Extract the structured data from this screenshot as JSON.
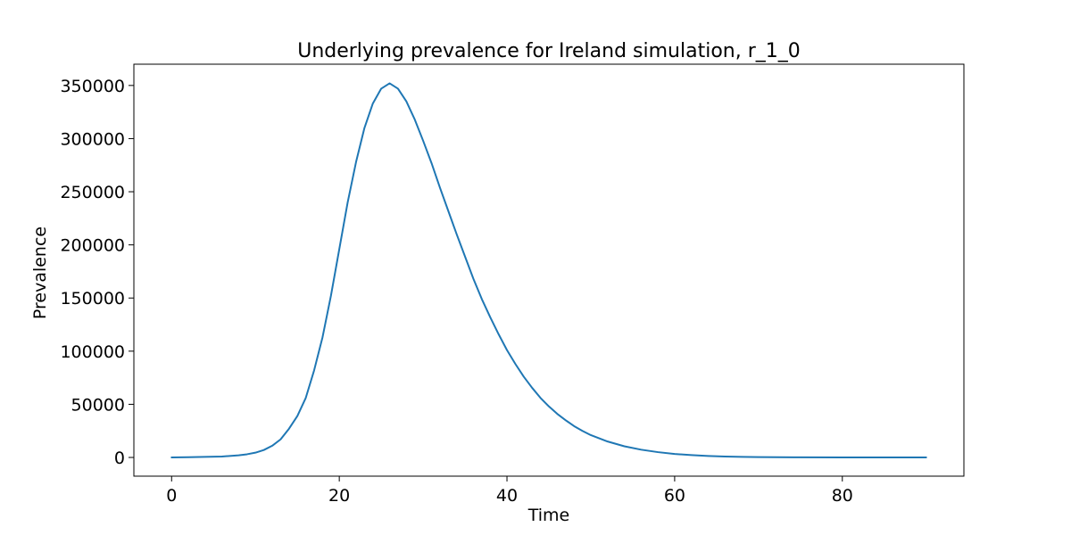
{
  "chart_data": {
    "type": "line",
    "title": "Underlying prevalence for Ireland simulation, r_1_0",
    "xlabel": "Time",
    "ylabel": "Prevalence",
    "xlim": [
      -4.5,
      94.5
    ],
    "ylim": [
      -17600,
      370000
    ],
    "xticks": [
      0,
      20,
      40,
      60,
      80
    ],
    "xtick_labels": [
      "0",
      "20",
      "40",
      "60",
      "80"
    ],
    "yticks": [
      0,
      50000,
      100000,
      150000,
      200000,
      250000,
      300000,
      350000
    ],
    "ytick_labels": [
      "0",
      "50000",
      "100000",
      "150000",
      "200000",
      "250000",
      "300000",
      "350000"
    ],
    "grid": false,
    "series": [
      {
        "color": "#1f77b4",
        "x": [
          0,
          2,
          4,
          6,
          8,
          9,
          10,
          11,
          12,
          13,
          14,
          15,
          16,
          17,
          18,
          19,
          20,
          21,
          22,
          23,
          24,
          25,
          26,
          27,
          28,
          29,
          30,
          31,
          32,
          33,
          34,
          35,
          36,
          37,
          38,
          39,
          40,
          41,
          42,
          43,
          44,
          45,
          46,
          47,
          48,
          49,
          50,
          52,
          54,
          56,
          58,
          60,
          62,
          64,
          66,
          68,
          70,
          75,
          80,
          85,
          90
        ],
        "y": [
          0,
          200,
          500,
          900,
          2000,
          3000,
          4500,
          7000,
          11000,
          17000,
          27000,
          39000,
          56000,
          82000,
          113000,
          152000,
          196000,
          240000,
          278000,
          310000,
          333000,
          347000,
          352000,
          347000,
          335000,
          318000,
          298000,
          277000,
          254000,
          232000,
          210000,
          189000,
          168000,
          149000,
          132000,
          116000,
          101000,
          88000,
          76000,
          65500,
          56000,
          48000,
          41000,
          35000,
          29500,
          25000,
          21000,
          15000,
          10500,
          7300,
          5000,
          3300,
          2200,
          1400,
          900,
          550,
          350,
          120,
          40,
          10,
          0
        ]
      }
    ]
  }
}
